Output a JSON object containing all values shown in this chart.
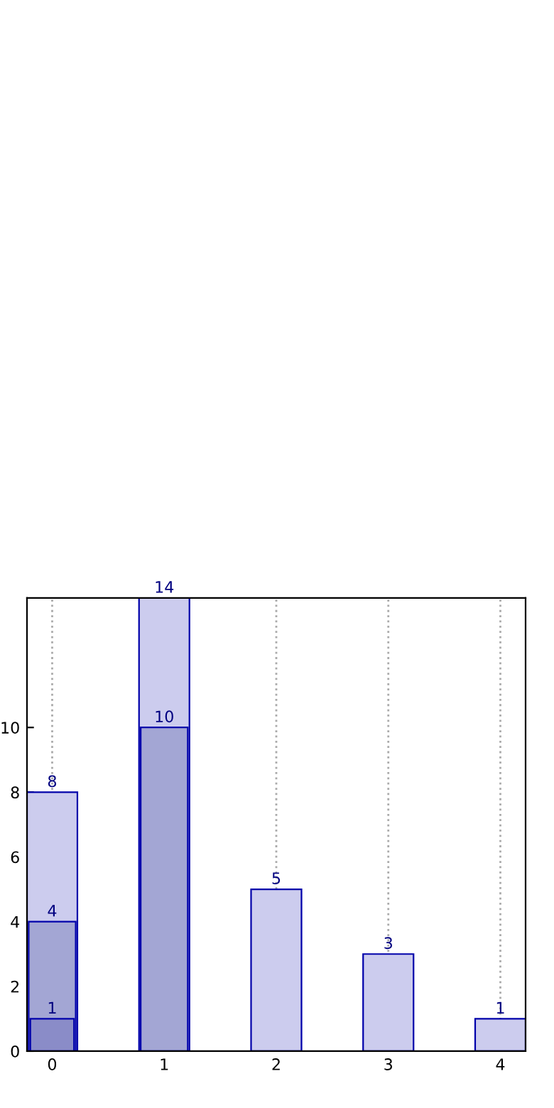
{
  "chart_data": {
    "type": "bar",
    "categories": [
      "0",
      "1",
      "2",
      "3",
      "4"
    ],
    "series": [
      {
        "colors": [
          "#ccccee",
          "#ccccee",
          "#ccccee",
          "#ccccee",
          "#ccccee"
        ],
        "values": [
          8,
          14,
          5,
          3,
          1
        ]
      },
      {
        "colors": [
          "#a3a6d4",
          "#a3a6d4",
          null,
          null,
          null
        ],
        "values": [
          4,
          10,
          null,
          null,
          null
        ]
      },
      {
        "colors": [
          "#8a8cc8",
          null,
          null,
          null,
          null
        ],
        "values": [
          1,
          null,
          null,
          null,
          null
        ]
      }
    ],
    "ylim": [
      0,
      14
    ],
    "yticks": [
      0,
      2,
      4,
      6,
      8,
      10
    ],
    "grid": "x",
    "data_labels": true
  }
}
